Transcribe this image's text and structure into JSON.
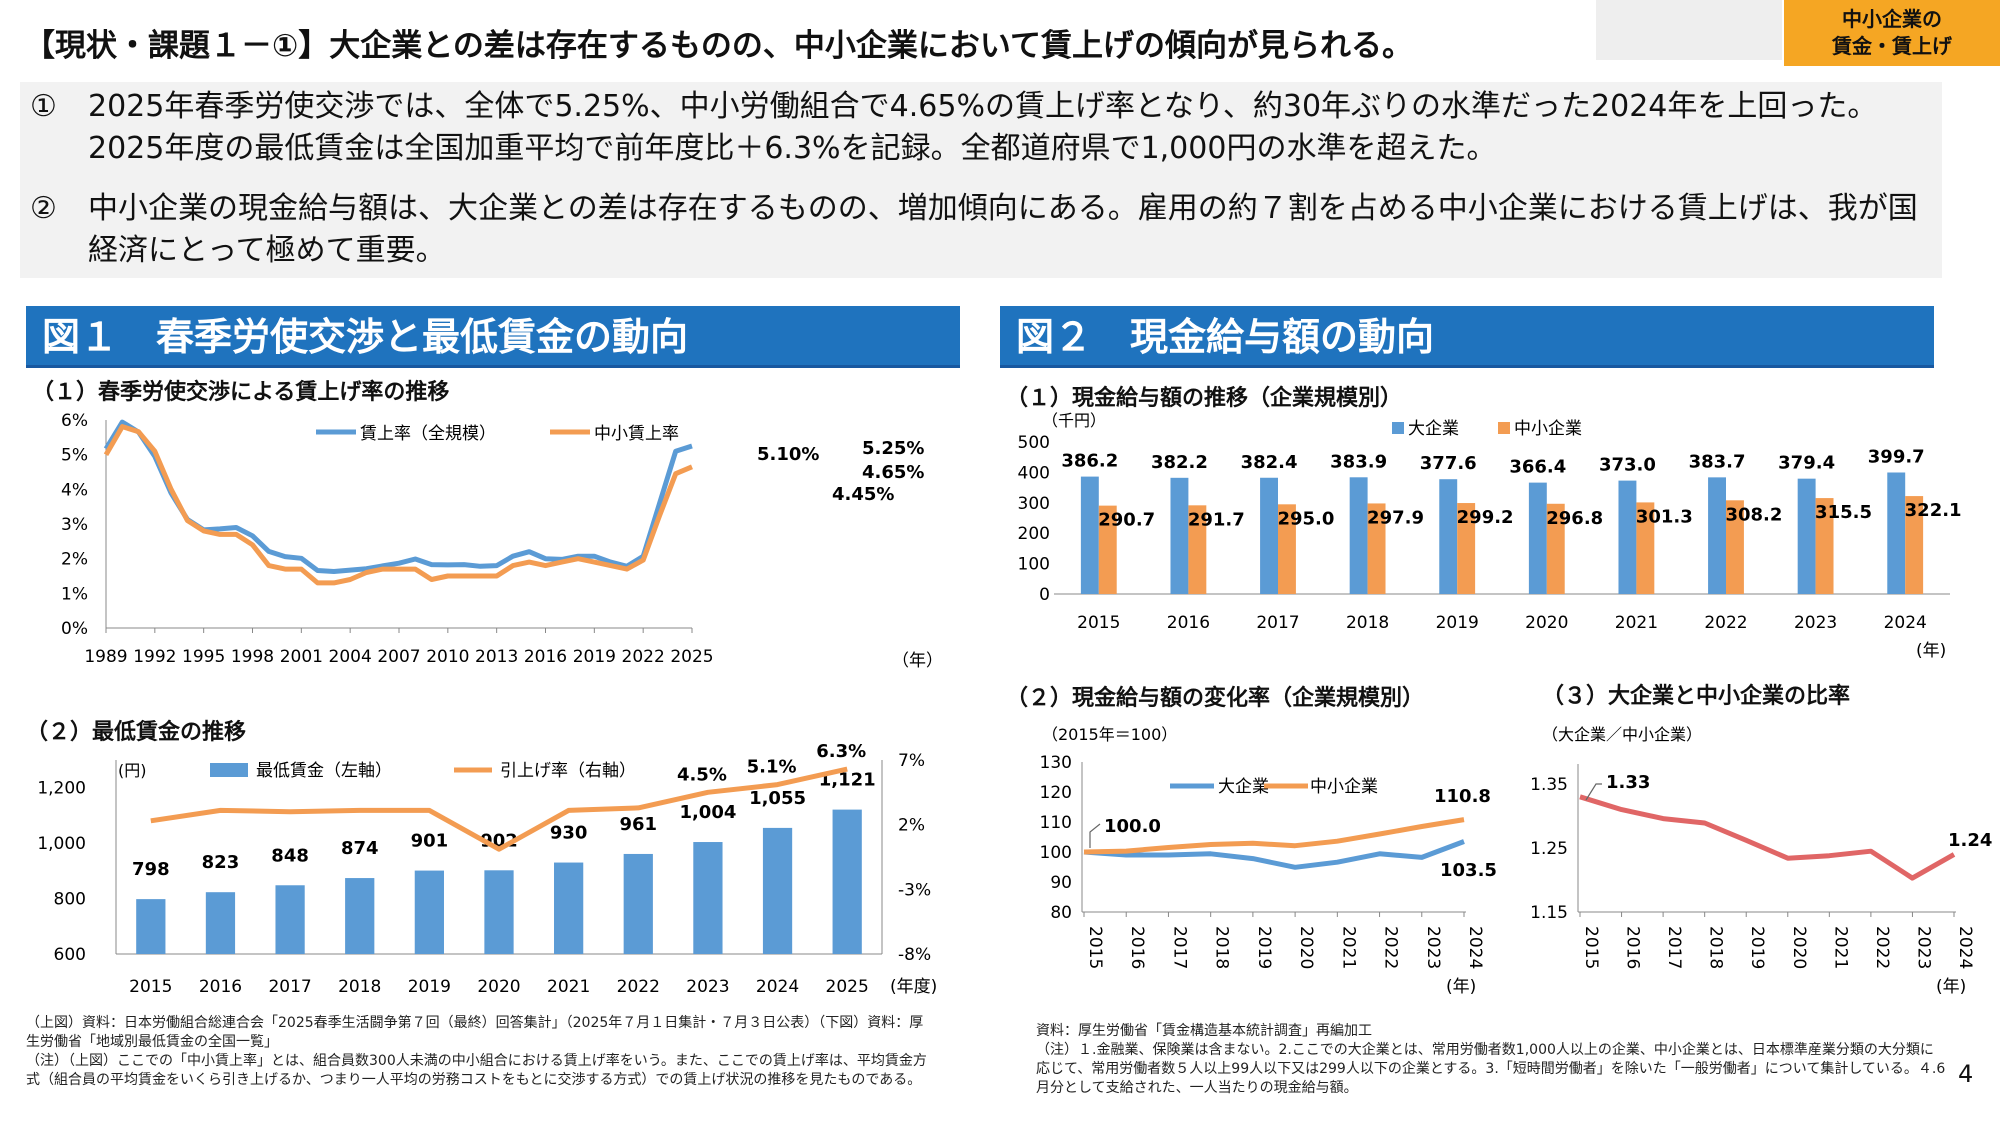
{
  "header": {
    "title": "【現状・課題１－①】大企業との差は存在するものの、中小企業において賃上げの傾向が見られる。",
    "tag_line1": "中小企業の",
    "tag_line2": "賃金・賃上げ"
  },
  "summary": [
    {
      "num": "①",
      "text": "2025年春季労使交渉では、全体で5.25%、中小労働組合で4.65%の賃上げ率となり、約30年ぶりの水準だった2024年を上回った。2025年度の最低賃金は全国加重平均で前年度比＋6.3%を記録。全都道府県で1,000円の水準を超えた。"
    },
    {
      "num": "②",
      "text": "中小企業の現金給与額は、大企業との差は存在するものの、増加傾向にある。雇用の約７割を占める中小企業における賃上げは、我が国経済にとって極めて重要。"
    }
  ],
  "figure1": {
    "banner": "図１　春季労使交渉と最低賃金の動向",
    "sub1": "（１）春季労使交渉による賃上げ率の推移",
    "sub2": "（２）最低賃金の推移",
    "notes": [
      "（上図）資料：日本労働組合総連合会「2025春季生活闘争第７回（最終）回答集計」（2025年７月１日集計・７月３日公表）（下図）資料：厚生労働省「地域別最低賃金の全国一覧」",
      "（注）（上図）ここでの「中小賃上率」とは、組合員数300人未満の中小組合における賃上げ率をいう。また、ここでの賃上げ率は、平均賃金方式（組合員の平均賃金をいくら引き上げるか、つまり一人平均の労務コストをもとに交渉する方式）での賃上げ状況の推移を見たものである。"
    ]
  },
  "figure2": {
    "banner": "図２　現金給与額の動向",
    "sub1": "（１）現金給与額の推移（企業規模別）",
    "sub2": "（２）現金給与額の変化率（企業規模別）",
    "sub3": "（３）大企業と中小企業の比率",
    "notes": [
      "資料：厚生労働省「賃金構造基本統計調査」再編加工",
      "（注）１.金融業、保険業は含まない。2.ここでの大企業とは、常用労働者数1,000人以上の企業、中小企業とは、日本標準産業分類の大分類に応じて、常用労働者数５人以上99人以下又は299人以下の企業とする。3.「短時間労働者」を除いた「一般労働者」について集計している。４.6月分として支給された、一人当たりの現金給与額。"
    ]
  },
  "page_number": "4",
  "chart_data": [
    {
      "id": "wage-increase-rate",
      "type": "line",
      "x": [
        1989,
        1990,
        1991,
        1992,
        1993,
        1994,
        1995,
        1996,
        1997,
        1998,
        1999,
        2000,
        2001,
        2002,
        2003,
        2004,
        2005,
        2006,
        2007,
        2008,
        2009,
        2010,
        2011,
        2012,
        2013,
        2014,
        2015,
        2016,
        2017,
        2018,
        2019,
        2020,
        2021,
        2022,
        2023,
        2024,
        2025
      ],
      "x_ticks": [
        "1989",
        "1992",
        "1995",
        "1998",
        "2001",
        "2004",
        "2007",
        "2010",
        "2013",
        "2016",
        "2019",
        "2022",
        "2025"
      ],
      "x_unit": "（年）",
      "ylim": [
        0,
        6
      ],
      "y_ticks": [
        "0%",
        "1%",
        "2%",
        "3%",
        "4%",
        "5%",
        "6%"
      ],
      "series": [
        {
          "name": "賃上率（全規模）",
          "color": "#5b9bd5",
          "values": [
            5.17,
            5.94,
            5.65,
            4.95,
            3.89,
            3.13,
            2.83,
            2.86,
            2.9,
            2.66,
            2.21,
            2.06,
            2.01,
            1.66,
            1.63,
            1.67,
            1.71,
            1.79,
            1.87,
            1.99,
            1.83,
            1.82,
            1.83,
            1.78,
            1.8,
            2.07,
            2.2,
            2.0,
            1.98,
            2.07,
            2.07,
            1.9,
            1.78,
            2.07,
            3.58,
            5.1,
            5.25
          ]
        },
        {
          "name": "中小賃上率",
          "color": "#f39c52",
          "values": [
            5.0,
            5.81,
            5.66,
            5.1,
            4.0,
            3.1,
            2.8,
            2.7,
            2.7,
            2.4,
            1.8,
            1.7,
            1.7,
            1.3,
            1.3,
            1.4,
            1.6,
            1.7,
            1.7,
            1.7,
            1.4,
            1.5,
            1.5,
            1.5,
            1.5,
            1.8,
            1.9,
            1.8,
            1.9,
            2.0,
            1.9,
            1.8,
            1.7,
            1.96,
            3.23,
            4.45,
            4.65
          ]
        }
      ],
      "labels": [
        "5.10%",
        "5.25%",
        "4.65%",
        "4.45%"
      ]
    },
    {
      "id": "minimum-wage",
      "type": "bar",
      "categories": [
        "2015",
        "2016",
        "2017",
        "2018",
        "2019",
        "2020",
        "2021",
        "2022",
        "2023",
        "2024",
        "2025"
      ],
      "x_unit": "(年度)",
      "y_unit": "(円)",
      "ylim_left": [
        600,
        1300
      ],
      "y_ticks_left": [
        "600",
        "800",
        "1,000",
        "1,200"
      ],
      "ylim_right": [
        -8,
        7
      ],
      "y_ticks_right": [
        "-8%",
        "-3%",
        "2%",
        "7%"
      ],
      "series": [
        {
          "name": "最低賃金（左軸）",
          "type": "bar",
          "color": "#5b9bd5",
          "values": [
            798,
            823,
            848,
            874,
            901,
            902,
            930,
            961,
            1004,
            1055,
            1121
          ],
          "labels": [
            "798",
            "823",
            "848",
            "874",
            "901",
            "902",
            "930",
            "961",
            "1,004",
            "1,055",
            "1,121"
          ]
        },
        {
          "name": "引上げ率（右軸）",
          "type": "line",
          "color": "#f39c52",
          "values": [
            2.3,
            3.1,
            3.0,
            3.1,
            3.1,
            0.1,
            3.1,
            3.3,
            4.5,
            5.1,
            6.3
          ],
          "labels": [
            "4.5%",
            "5.1%",
            "6.3%"
          ]
        }
      ]
    },
    {
      "id": "cash-salary",
      "type": "bar",
      "categories": [
        "2015",
        "2016",
        "2017",
        "2018",
        "2019",
        "2020",
        "2021",
        "2022",
        "2023",
        "2024"
      ],
      "x_unit": "(年)",
      "y_unit": "（千円）",
      "ylim": [
        0,
        500
      ],
      "y_ticks": [
        "0",
        "100",
        "200",
        "300",
        "400",
        "500"
      ],
      "series": [
        {
          "name": "大企業",
          "color": "#5b9bd5",
          "values": [
            386.2,
            382.2,
            382.4,
            383.9,
            377.6,
            366.4,
            373.0,
            383.7,
            379.4,
            399.7
          ]
        },
        {
          "name": "中小企業",
          "color": "#f39c52",
          "values": [
            290.7,
            291.7,
            295.0,
            297.9,
            299.2,
            296.8,
            301.3,
            308.2,
            315.5,
            322.1
          ]
        }
      ]
    },
    {
      "id": "salary-change-rate",
      "type": "line",
      "x": [
        "2015",
        "2016",
        "2017",
        "2018",
        "2019",
        "2020",
        "2021",
        "2022",
        "2023",
        "2024"
      ],
      "x_unit": "(年)",
      "note": "（2015年＝100）",
      "ylim": [
        80,
        130
      ],
      "y_ticks": [
        "80",
        "90",
        "100",
        "110",
        "120",
        "130"
      ],
      "series": [
        {
          "name": "大企業",
          "color": "#5b9bd5",
          "values": [
            100.0,
            99.0,
            99.0,
            99.4,
            97.8,
            94.9,
            96.6,
            99.4,
            98.2,
            103.5
          ]
        },
        {
          "name": "中小企業",
          "color": "#f39c52",
          "values": [
            100.0,
            100.3,
            101.5,
            102.5,
            102.9,
            102.1,
            103.6,
            106.0,
            108.5,
            110.8
          ]
        }
      ],
      "labels": [
        "100.0",
        "110.8",
        "103.5"
      ]
    },
    {
      "id": "large-small-ratio",
      "type": "line",
      "x": [
        "2015",
        "2016",
        "2017",
        "2018",
        "2019",
        "2020",
        "2021",
        "2022",
        "2023",
        "2024"
      ],
      "x_unit": "(年)",
      "note": "（大企業／中小企業）",
      "ylim": [
        1.15,
        1.35
      ],
      "y_ticks": [
        "1.15",
        "1.25",
        "1.35"
      ],
      "series": [
        {
          "name": "",
          "color": "#e06666",
          "values": [
            1.33,
            1.31,
            1.296,
            1.289,
            1.262,
            1.234,
            1.238,
            1.245,
            1.203,
            1.24
          ]
        }
      ],
      "labels": [
        "1.33",
        "1.24"
      ]
    }
  ]
}
